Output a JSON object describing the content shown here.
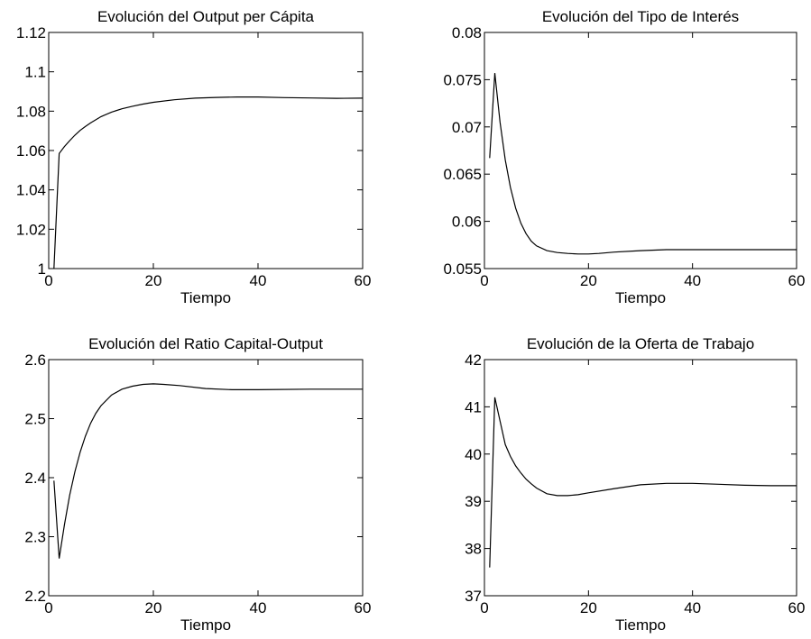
{
  "chart_data": [
    {
      "type": "line",
      "title": "Evolución del Output per Cápita",
      "xlabel": "Tiempo",
      "ylabel": "",
      "xlim": [
        0,
        60
      ],
      "ylim": [
        1,
        1.12
      ],
      "xticks": [
        0,
        20,
        40,
        60
      ],
      "xtick_labels": [
        "0",
        "20",
        "40",
        "60"
      ],
      "yticks": [
        1,
        1.02,
        1.04,
        1.06,
        1.08,
        1.1,
        1.12
      ],
      "ytick_labels": [
        "1",
        "1.02",
        "1.04",
        "1.06",
        "1.08",
        "1.1",
        "1.12"
      ],
      "grid": false,
      "series": [
        {
          "x": [
            1,
            2,
            3,
            4,
            5,
            6,
            7,
            8,
            10,
            12,
            14,
            16,
            18,
            20,
            24,
            28,
            32,
            36,
            40,
            45,
            50,
            55,
            60
          ],
          "y": [
            1.0,
            1.0585,
            1.062,
            1.065,
            1.0678,
            1.0702,
            1.0722,
            1.074,
            1.0772,
            1.0795,
            1.0812,
            1.0825,
            1.0836,
            1.0845,
            1.0858,
            1.0866,
            1.087,
            1.0872,
            1.0872,
            1.0869,
            1.0867,
            1.0865,
            1.0866
          ]
        }
      ]
    },
    {
      "type": "line",
      "title": "Evolución del Tipo de Interés",
      "xlabel": "Tiempo",
      "ylabel": "",
      "xlim": [
        0,
        60
      ],
      "ylim": [
        0.055,
        0.08
      ],
      "xticks": [
        0,
        20,
        40,
        60
      ],
      "xtick_labels": [
        "0",
        "20",
        "40",
        "60"
      ],
      "yticks": [
        0.055,
        0.06,
        0.065,
        0.07,
        0.075,
        0.08
      ],
      "ytick_labels": [
        "0.055",
        "0.06",
        "0.065",
        "0.07",
        "0.075",
        "0.08"
      ],
      "grid": false,
      "series": [
        {
          "x": [
            1,
            2,
            3,
            4,
            5,
            6,
            7,
            8,
            9,
            10,
            12,
            14,
            16,
            18,
            20,
            22,
            25,
            30,
            35,
            40,
            50,
            60
          ],
          "y": [
            0.0667,
            0.0757,
            0.0705,
            0.0665,
            0.0636,
            0.0614,
            0.0598,
            0.0587,
            0.0579,
            0.0574,
            0.0569,
            0.0567,
            0.0566,
            0.05655,
            0.05655,
            0.0566,
            0.05675,
            0.0569,
            0.057,
            0.057,
            0.057,
            0.057
          ]
        }
      ]
    },
    {
      "type": "line",
      "title": "Evolución del Ratio Capital-Output",
      "xlabel": "Tiempo",
      "ylabel": "",
      "xlim": [
        0,
        60
      ],
      "ylim": [
        2.2,
        2.6
      ],
      "xticks": [
        0,
        20,
        40,
        60
      ],
      "xtick_labels": [
        "0",
        "20",
        "40",
        "60"
      ],
      "yticks": [
        2.2,
        2.3,
        2.4,
        2.5,
        2.6
      ],
      "ytick_labels": [
        "2.2",
        "2.3",
        "2.4",
        "2.5",
        "2.6"
      ],
      "grid": false,
      "series": [
        {
          "x": [
            1,
            2,
            3,
            4,
            5,
            6,
            7,
            8,
            9,
            10,
            12,
            14,
            16,
            18,
            20,
            22,
            25,
            30,
            35,
            40,
            50,
            60
          ],
          "y": [
            2.395,
            2.263,
            2.32,
            2.37,
            2.41,
            2.443,
            2.47,
            2.492,
            2.509,
            2.522,
            2.54,
            2.55,
            2.555,
            2.558,
            2.559,
            2.558,
            2.556,
            2.551,
            2.549,
            2.549,
            2.55,
            2.55
          ]
        }
      ]
    },
    {
      "type": "line",
      "title": "Evolución de la Oferta de Trabajo",
      "xlabel": "Tiempo",
      "ylabel": "",
      "xlim": [
        0,
        60
      ],
      "ylim": [
        37,
        42
      ],
      "xticks": [
        0,
        20,
        40,
        60
      ],
      "xtick_labels": [
        "0",
        "20",
        "40",
        "60"
      ],
      "yticks": [
        37,
        38,
        39,
        40,
        41,
        42
      ],
      "ytick_labels": [
        "37",
        "38",
        "39",
        "40",
        "41",
        "42"
      ],
      "grid": false,
      "series": [
        {
          "x": [
            1,
            2,
            3,
            4,
            5,
            6,
            7,
            8,
            9,
            10,
            12,
            14,
            16,
            18,
            20,
            25,
            30,
            35,
            40,
            45,
            50,
            55,
            60
          ],
          "y": [
            37.6,
            41.2,
            40.7,
            40.2,
            39.95,
            39.75,
            39.6,
            39.47,
            39.37,
            39.28,
            39.16,
            39.12,
            39.12,
            39.14,
            39.18,
            39.27,
            39.35,
            39.38,
            39.38,
            39.36,
            39.34,
            39.33,
            39.33
          ]
        }
      ]
    }
  ]
}
